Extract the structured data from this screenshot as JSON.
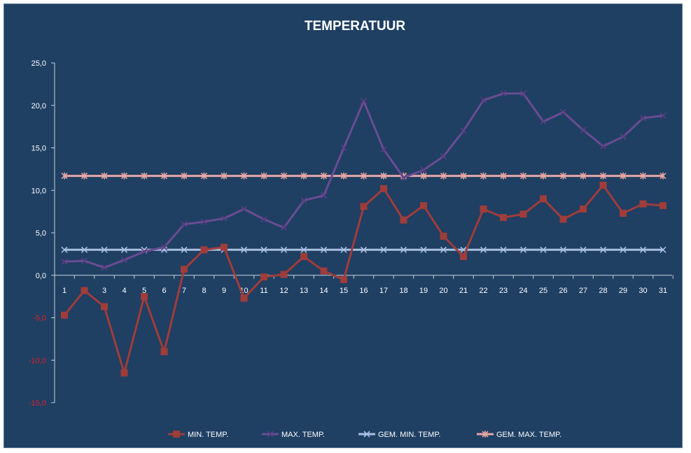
{
  "chart_data": {
    "type": "line",
    "title": "TEMPERATUUR",
    "xlabel": "",
    "ylabel": "",
    "categories": [
      "1",
      "2",
      "3",
      "4",
      "5",
      "6",
      "7",
      "8",
      "9",
      "10",
      "11",
      "12",
      "13",
      "14",
      "15",
      "16",
      "17",
      "18",
      "19",
      "20",
      "21",
      "22",
      "23",
      "24",
      "25",
      "26",
      "27",
      "28",
      "29",
      "30",
      "31"
    ],
    "ylim": [
      -15,
      25
    ],
    "yticks": [
      "-15,0",
      "-10,0",
      "-5,0",
      "0,0",
      "5,0",
      "10,0",
      "15,0",
      "20,0",
      "25,0"
    ],
    "ytick_values": [
      -15,
      -10,
      -5,
      0,
      5,
      10,
      15,
      20,
      25
    ],
    "negative_tick_color": "#e0202a",
    "positive_tick_color": "#ffffff",
    "grid": false,
    "legend_position": "bottom",
    "series": [
      {
        "name": "MIN. TEMP.",
        "color": "#a03c3a",
        "marker": "square",
        "values": [
          -4.7,
          -1.8,
          -3.7,
          -11.5,
          -2.5,
          -9.0,
          0.7,
          3.0,
          3.3,
          -2.7,
          -0.2,
          0.1,
          2.2,
          0.5,
          -0.5,
          8.1,
          10.2,
          6.5,
          8.2,
          4.6,
          2.2,
          7.8,
          6.8,
          7.2,
          9.0,
          6.6,
          7.8,
          10.6,
          7.3,
          8.4,
          8.2
        ]
      },
      {
        "name": "MAX. TEMP.",
        "color": "#6a4c93",
        "marker": "x",
        "values": [
          1.6,
          1.7,
          0.9,
          1.8,
          2.8,
          3.3,
          6.0,
          6.3,
          6.7,
          7.8,
          6.6,
          5.6,
          8.8,
          9.4,
          15.0,
          20.5,
          14.8,
          11.5,
          12.4,
          14.0,
          17.0,
          20.6,
          21.4,
          21.4,
          18.1,
          19.2,
          17.1,
          15.2,
          16.3,
          18.5,
          18.8
        ]
      },
      {
        "name": "GEM. MIN. TEMP.",
        "color": "#a9bfe0",
        "marker": "x",
        "values": [
          3.0,
          3.0,
          3.0,
          3.0,
          3.0,
          3.0,
          3.0,
          3.0,
          3.0,
          3.0,
          3.0,
          3.0,
          3.0,
          3.0,
          3.0,
          3.0,
          3.0,
          3.0,
          3.0,
          3.0,
          3.0,
          3.0,
          3.0,
          3.0,
          3.0,
          3.0,
          3.0,
          3.0,
          3.0,
          3.0,
          3.0
        ]
      },
      {
        "name": "GEM. MAX. TEMP.",
        "color": "#e8a6a4",
        "marker": "star",
        "values": [
          11.7,
          11.7,
          11.7,
          11.7,
          11.7,
          11.7,
          11.7,
          11.7,
          11.7,
          11.7,
          11.7,
          11.7,
          11.7,
          11.7,
          11.7,
          11.7,
          11.7,
          11.7,
          11.7,
          11.7,
          11.7,
          11.7,
          11.7,
          11.7,
          11.7,
          11.7,
          11.7,
          11.7,
          11.7,
          11.7,
          11.7
        ]
      }
    ]
  }
}
